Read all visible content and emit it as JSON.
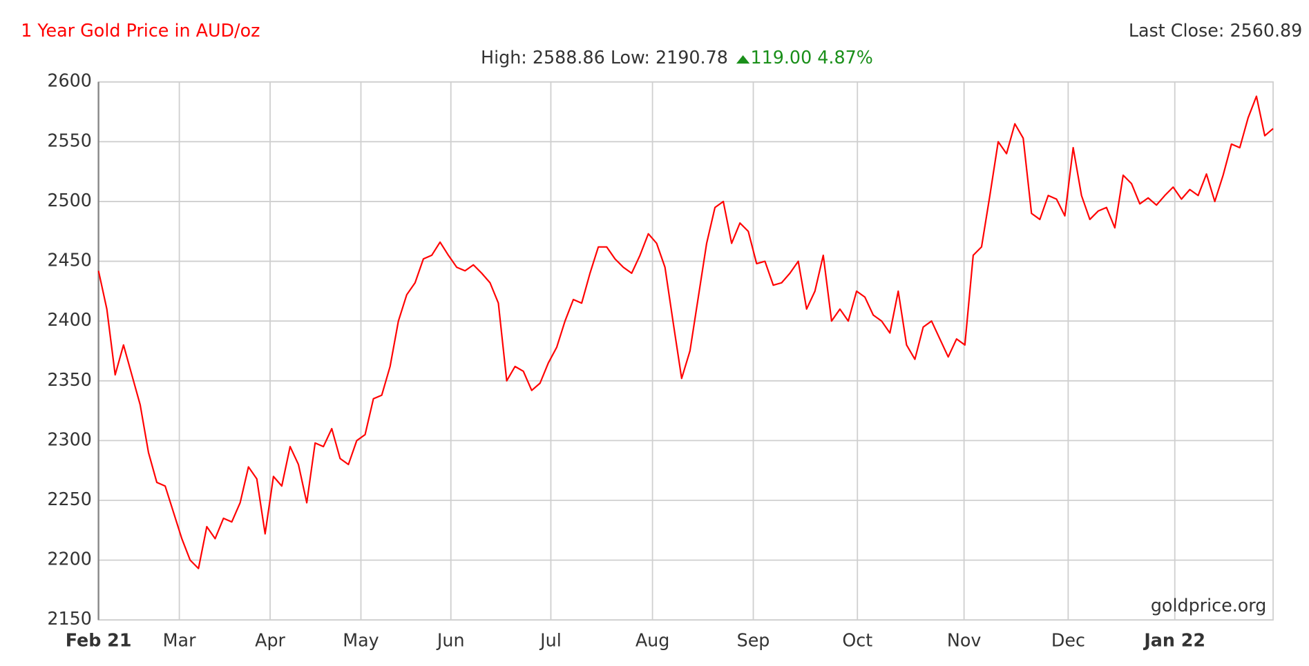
{
  "chart_data": {
    "type": "line",
    "title": "1 Year Gold Price in AUD/oz",
    "last_close": "Last Close: 2560.89",
    "subtitle": "High: 2588.86 Low: 2190.78",
    "change": "119.00 4.87%",
    "watermark": "goldprice.org",
    "grid": true,
    "color": "#ff0000",
    "xlim": [
      0,
      141
    ],
    "xticks": [
      {
        "value": 0,
        "label": "Feb 21"
      },
      {
        "value": 9.7,
        "label": "Mar"
      },
      {
        "value": 20.6,
        "label": "Apr"
      },
      {
        "value": 31.5,
        "label": "May"
      },
      {
        "value": 42.3,
        "label": "Jun"
      },
      {
        "value": 54.3,
        "label": "Jul"
      },
      {
        "value": 66.5,
        "label": "Aug"
      },
      {
        "value": 78.6,
        "label": "Sep"
      },
      {
        "value": 91.1,
        "label": "Oct"
      },
      {
        "value": 103.9,
        "label": "Nov"
      },
      {
        "value": 116.4,
        "label": "Dec"
      },
      {
        "value": 129.2,
        "label": "Jan 22"
      }
    ],
    "ylim": [
      2150,
      2600
    ],
    "yticks": [
      2150,
      2200,
      2250,
      2300,
      2350,
      2400,
      2450,
      2500,
      2550,
      2600
    ],
    "values": [
      2442,
      2410,
      2355,
      2380,
      2355,
      2330,
      2290,
      2265,
      2262,
      2240,
      2218,
      2200,
      2193,
      2228,
      2218,
      2235,
      2232,
      2248,
      2278,
      2268,
      2222,
      2270,
      2262,
      2295,
      2280,
      2248,
      2298,
      2295,
      2310,
      2285,
      2280,
      2300,
      2305,
      2335,
      2338,
      2362,
      2400,
      2422,
      2432,
      2452,
      2455,
      2466,
      2455,
      2445,
      2442,
      2447,
      2440,
      2432,
      2415,
      2350,
      2362,
      2358,
      2342,
      2348,
      2365,
      2378,
      2400,
      2418,
      2415,
      2440,
      2462,
      2462,
      2452,
      2445,
      2440,
      2455,
      2473,
      2465,
      2445,
      2398,
      2352,
      2375,
      2420,
      2465,
      2495,
      2500,
      2465,
      2482,
      2475,
      2448,
      2450,
      2430,
      2432,
      2440,
      2450,
      2410,
      2425,
      2455,
      2400,
      2410,
      2400,
      2425,
      2420,
      2405,
      2400,
      2390,
      2425,
      2380,
      2368,
      2395,
      2400,
      2385,
      2370,
      2385,
      2380,
      2455,
      2462,
      2505,
      2550,
      2540,
      2565,
      2553,
      2490,
      2485,
      2505,
      2502,
      2488,
      2545,
      2505,
      2485,
      2492,
      2495,
      2478,
      2522,
      2515,
      2498,
      2503,
      2497,
      2505,
      2512,
      2502,
      2510,
      2505,
      2523,
      2500,
      2522,
      2548,
      2545,
      2570,
      2588,
      2555,
      2561
    ]
  }
}
